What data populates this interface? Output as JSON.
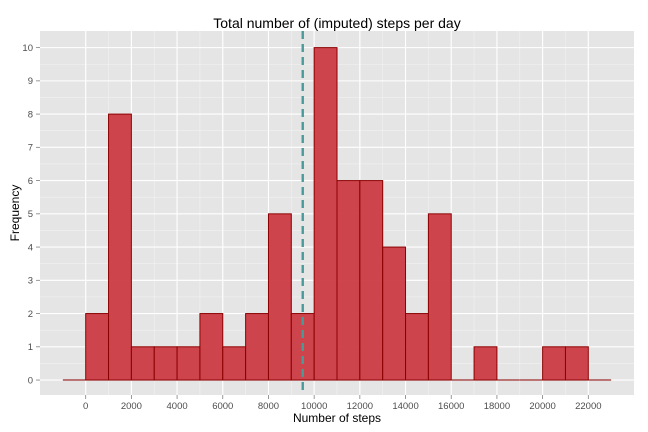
{
  "chart_data": {
    "type": "bar",
    "title": "Total number of (imputed) steps per day",
    "xlabel": "Number of steps",
    "ylabel": "Frequency",
    "binwidth": 1000,
    "bins": [
      {
        "x0": -1000,
        "x1": 0,
        "count": 0
      },
      {
        "x0": 0,
        "x1": 1000,
        "count": 2
      },
      {
        "x0": 1000,
        "x1": 2000,
        "count": 8
      },
      {
        "x0": 2000,
        "x1": 3000,
        "count": 1
      },
      {
        "x0": 3000,
        "x1": 4000,
        "count": 1
      },
      {
        "x0": 4000,
        "x1": 5000,
        "count": 1
      },
      {
        "x0": 5000,
        "x1": 6000,
        "count": 2
      },
      {
        "x0": 6000,
        "x1": 7000,
        "count": 1
      },
      {
        "x0": 7000,
        "x1": 8000,
        "count": 2
      },
      {
        "x0": 8000,
        "x1": 9000,
        "count": 5
      },
      {
        "x0": 9000,
        "x1": 10000,
        "count": 2
      },
      {
        "x0": 10000,
        "x1": 11000,
        "count": 10
      },
      {
        "x0": 11000,
        "x1": 12000,
        "count": 6
      },
      {
        "x0": 12000,
        "x1": 13000,
        "count": 6
      },
      {
        "x0": 13000,
        "x1": 14000,
        "count": 4
      },
      {
        "x0": 14000,
        "x1": 15000,
        "count": 2
      },
      {
        "x0": 15000,
        "x1": 16000,
        "count": 5
      },
      {
        "x0": 16000,
        "x1": 17000,
        "count": 0
      },
      {
        "x0": 17000,
        "x1": 18000,
        "count": 1
      },
      {
        "x0": 18000,
        "x1": 19000,
        "count": 0
      },
      {
        "x0": 19000,
        "x1": 20000,
        "count": 0
      },
      {
        "x0": 20000,
        "x1": 21000,
        "count": 1
      },
      {
        "x0": 21000,
        "x1": 22000,
        "count": 1
      },
      {
        "x0": 22000,
        "x1": 23000,
        "count": 0
      }
    ],
    "xlim": [
      -2000,
      24000
    ],
    "ylim": [
      -0.45,
      10.5
    ],
    "x_ticks": [
      "0",
      "2000",
      "4000",
      "6000",
      "8000",
      "10000",
      "12000",
      "14000",
      "16000",
      "18000",
      "20000",
      "22000"
    ],
    "y_ticks": [
      "0",
      "1",
      "2",
      "3",
      "4",
      "5",
      "6",
      "7",
      "8",
      "9",
      "10"
    ],
    "vline": {
      "x": 9500,
      "style": "dashed"
    },
    "grid": true,
    "colors": {
      "bar_fill": "#cc3b43",
      "bar_edge": "#8b0000",
      "panel_bg": "#e5e5e5",
      "grid_major": "#ffffff",
      "grid_minor": "#f2f2f2",
      "vline": "#4a9a9a"
    }
  }
}
